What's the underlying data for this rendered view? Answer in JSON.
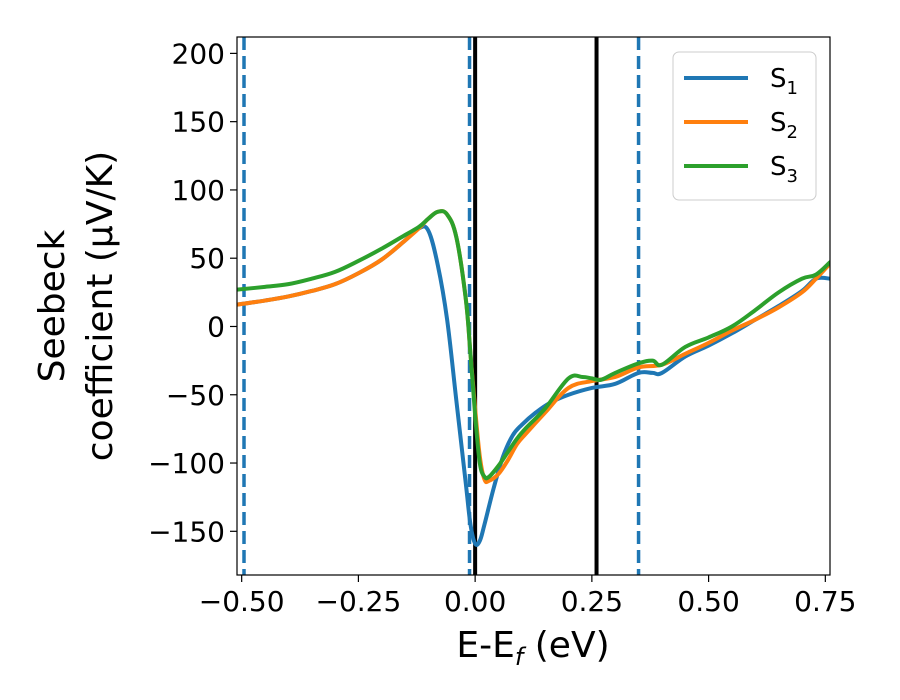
{
  "chart_data": {
    "type": "line",
    "title": "",
    "xlabel": {
      "base": "E-E",
      "sub": "f",
      "suffix": " (eV)"
    },
    "ylabel": {
      "line1": "Seebeck",
      "line2": "coefficient  (μV/K)"
    },
    "xlim": [
      -0.51,
      0.76
    ],
    "ylim": [
      -182,
      212
    ],
    "xticks": [
      -0.5,
      -0.25,
      0.0,
      0.25,
      0.5,
      0.75
    ],
    "xtick_labels": [
      "−0.50",
      "−0.25",
      "0.00",
      "0.25",
      "0.50",
      "0.75"
    ],
    "yticks": [
      -150,
      -100,
      -50,
      0,
      50,
      100,
      150,
      200
    ],
    "ytick_labels": [
      "−150",
      "−100",
      "−50",
      "0",
      "50",
      "100",
      "150",
      "200"
    ],
    "grid": false,
    "legend_position": "top-right",
    "series": [
      {
        "name": {
          "base": "S",
          "sub": "1"
        },
        "color": "#1f77b4",
        "x": [
          -0.51,
          -0.45,
          -0.4,
          -0.35,
          -0.3,
          -0.25,
          -0.2,
          -0.15,
          -0.12,
          -0.1,
          -0.08,
          -0.06,
          -0.04,
          -0.02,
          -0.01,
          0.0,
          0.01,
          0.02,
          0.04,
          0.06,
          0.08,
          0.1,
          0.13,
          0.16,
          0.2,
          0.25,
          0.3,
          0.35,
          0.38,
          0.4,
          0.45,
          0.5,
          0.55,
          0.6,
          0.65,
          0.7,
          0.73,
          0.76
        ],
        "values": [
          16,
          19,
          22,
          26,
          31,
          39,
          49,
          63,
          72,
          70,
          45,
          5,
          -55,
          -115,
          -145,
          -159,
          -157,
          -145,
          -118,
          -95,
          -80,
          -72,
          -63,
          -56,
          -50,
          -45,
          -42,
          -34,
          -34,
          -34,
          -22,
          -14,
          -5,
          5,
          15,
          26,
          35,
          35
        ]
      },
      {
        "name": {
          "base": "S",
          "sub": "2"
        },
        "color": "#ff7f0e",
        "x": [
          -0.51,
          -0.45,
          -0.4,
          -0.35,
          -0.3,
          -0.25,
          -0.2,
          -0.15,
          -0.12,
          -0.1,
          -0.08,
          -0.06,
          -0.04,
          -0.02,
          -0.01,
          0.0,
          0.01,
          0.02,
          0.03,
          0.05,
          0.07,
          0.09,
          0.11,
          0.15,
          0.2,
          0.25,
          0.3,
          0.35,
          0.4,
          0.45,
          0.5,
          0.55,
          0.6,
          0.65,
          0.7,
          0.73,
          0.76
        ],
        "values": [
          16,
          19,
          22,
          26,
          31,
          39,
          49,
          63,
          72,
          79,
          84,
          82,
          65,
          20,
          -20,
          -60,
          -95,
          -112,
          -113,
          -108,
          -98,
          -86,
          -78,
          -63,
          -45,
          -40,
          -37,
          -30,
          -28,
          -20,
          -12,
          -3,
          5,
          14,
          25,
          35,
          46
        ]
      },
      {
        "name": {
          "base": "S",
          "sub": "3"
        },
        "color": "#2ca02c",
        "x": [
          -0.51,
          -0.45,
          -0.4,
          -0.35,
          -0.3,
          -0.25,
          -0.2,
          -0.15,
          -0.12,
          -0.1,
          -0.08,
          -0.06,
          -0.04,
          -0.02,
          -0.01,
          0.0,
          0.01,
          0.02,
          0.03,
          0.05,
          0.07,
          0.09,
          0.11,
          0.15,
          0.2,
          0.23,
          0.25,
          0.27,
          0.3,
          0.35,
          0.38,
          0.4,
          0.45,
          0.5,
          0.55,
          0.6,
          0.65,
          0.7,
          0.73,
          0.76
        ],
        "values": [
          27,
          29,
          31,
          35,
          40,
          48,
          57,
          67,
          73,
          79,
          84,
          82,
          65,
          20,
          -20,
          -65,
          -100,
          -110,
          -110,
          -102,
          -92,
          -82,
          -74,
          -60,
          -38,
          -37,
          -38,
          -39,
          -34,
          -27,
          -25,
          -28,
          -15,
          -8,
          0,
          12,
          25,
          35,
          38,
          47
        ]
      }
    ],
    "vlines": [
      {
        "x": -0.495,
        "color": "#1f77b4",
        "style": "dashed"
      },
      {
        "x": -0.012,
        "color": "#1f77b4",
        "style": "dashed"
      },
      {
        "x": 0.0,
        "color": "#000000",
        "style": "solid"
      },
      {
        "x": 0.26,
        "color": "#000000",
        "style": "solid"
      },
      {
        "x": 0.35,
        "color": "#1f77b4",
        "style": "dashed"
      }
    ]
  }
}
